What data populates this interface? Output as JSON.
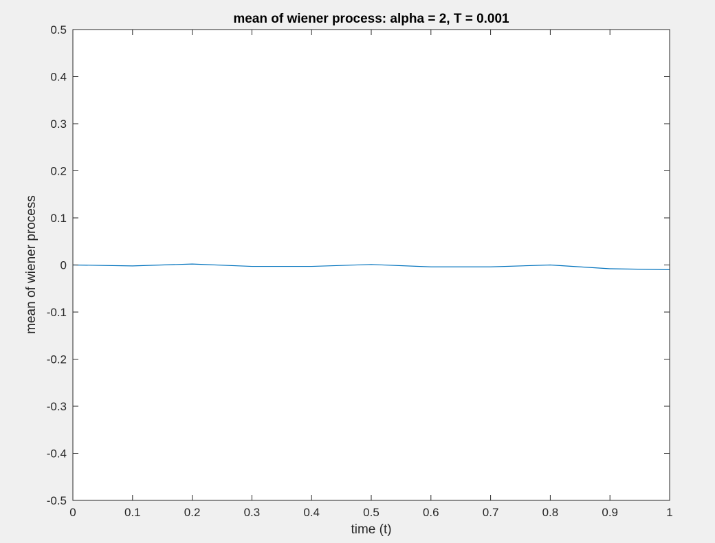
{
  "chart_data": {
    "type": "line",
    "title": "mean of wiener process: alpha = 2, T = 0.001",
    "xlabel": "time (t)",
    "ylabel": "mean of wiener process",
    "xlim": [
      0,
      1
    ],
    "ylim": [
      -0.5,
      0.5
    ],
    "xticks": [
      0,
      0.1,
      0.2,
      0.3,
      0.4,
      0.5,
      0.6,
      0.7,
      0.8,
      0.9,
      1
    ],
    "xtick_labels": [
      "0",
      "0.1",
      "0.2",
      "0.3",
      "0.4",
      "0.5",
      "0.6",
      "0.7",
      "0.8",
      "0.9",
      "1"
    ],
    "yticks": [
      -0.5,
      -0.4,
      -0.3,
      -0.2,
      -0.1,
      0,
      0.1,
      0.2,
      0.3,
      0.4,
      0.5
    ],
    "ytick_labels": [
      "-0.5",
      "-0.4",
      "-0.3",
      "-0.2",
      "-0.1",
      "0",
      "0.1",
      "0.2",
      "0.3",
      "0.4",
      "0.5"
    ],
    "grid": false,
    "legend": "none",
    "series": [
      {
        "color": "#0072bd",
        "x": [
          0,
          0.1,
          0.2,
          0.3,
          0.4,
          0.5,
          0.6,
          0.7,
          0.8,
          0.9,
          1.0
        ],
        "y": [
          0.0,
          -0.002,
          0.002,
          -0.003,
          -0.003,
          0.001,
          -0.004,
          -0.004,
          0.0,
          -0.008,
          -0.01
        ]
      }
    ],
    "colors": {
      "figure_background": "#f0f0f0",
      "axes_background": "#ffffff",
      "axis_color": "#262626"
    }
  }
}
